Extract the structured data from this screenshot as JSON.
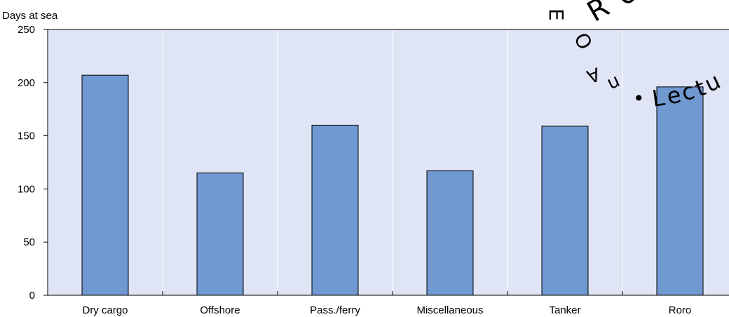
{
  "chart_data": {
    "type": "bar",
    "ylabel": "Days at sea",
    "categories": [
      "Dry cargo",
      "Offshore",
      "Pass./ferry",
      "Miscellaneous",
      "Tanker",
      "Roro"
    ],
    "values": [
      207,
      115,
      160,
      117,
      159,
      196
    ],
    "ylim": [
      0,
      250
    ],
    "yticks": [
      "0",
      "50",
      "100",
      "150",
      "200",
      "250"
    ],
    "grid": "vertical",
    "colors": {
      "bar": "#7099d1",
      "plot_background": "#dfe5f5",
      "grid": "#ffffff"
    }
  },
  "watermark": {
    "text_letters": [
      "E",
      "O",
      "R",
      "e",
      "A",
      "n",
      "•",
      "L",
      "e",
      "c",
      "t",
      "u"
    ]
  }
}
